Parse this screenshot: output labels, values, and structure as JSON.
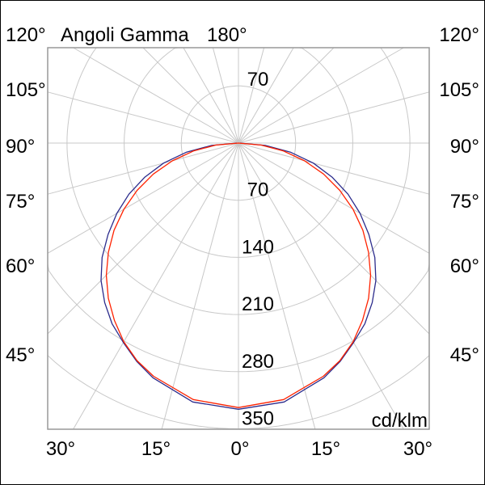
{
  "chart_data": {
    "type": "line",
    "subtype": "polar",
    "title": "Angoli Gamma",
    "unit": "cd/klm",
    "top_labels": [
      "120°",
      "180°"
    ],
    "left_angle_labels": [
      "120°",
      "105°",
      "90°",
      "75°",
      "60°",
      "45°"
    ],
    "right_angle_labels": [
      "120°",
      "105°",
      "90°",
      "75°",
      "60°",
      "45°"
    ],
    "bottom_angle_labels": [
      "30°",
      "15°",
      "0°",
      "15°",
      "30°"
    ],
    "radial_tick_top": "70",
    "radial_ticks": [
      "70",
      "140",
      "210",
      "280",
      "350"
    ],
    "radial_values": [
      70,
      140,
      210,
      280,
      350
    ],
    "rlim": [
      0,
      350
    ],
    "angular_grid_step_deg": 15,
    "grid": true,
    "gamma_deg": [
      0,
      10,
      20,
      25,
      30,
      35,
      40,
      45,
      50,
      55,
      60,
      65,
      70,
      75,
      80,
      85,
      90
    ],
    "series": [
      {
        "color": "#2b2b8c",
        "values": [
          326,
          322,
          306,
          295,
          282,
          270,
          255,
          238,
          218,
          195,
          172,
          148,
          122,
          95,
          65,
          33,
          2
        ]
      },
      {
        "color": "#ff2200",
        "values": [
          324,
          319,
          304,
          294,
          281,
          265,
          248,
          229,
          208,
          186,
          162,
          137,
          111,
          84,
          56,
          28,
          0
        ]
      }
    ]
  }
}
